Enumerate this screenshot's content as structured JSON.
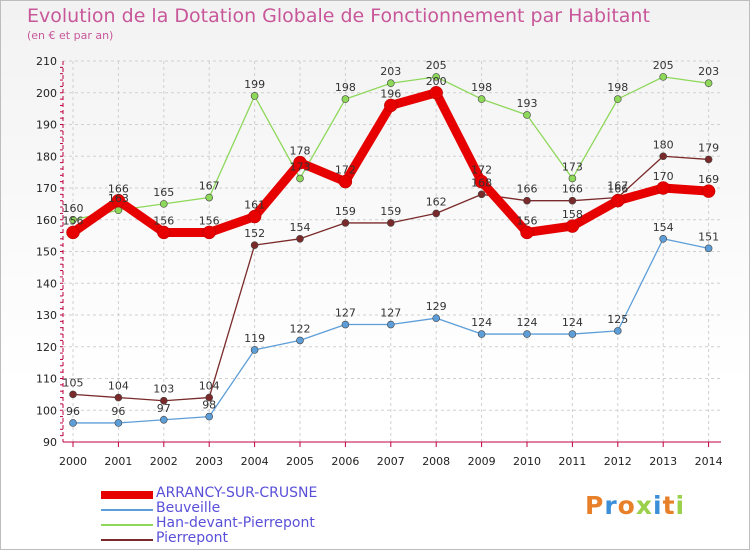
{
  "header": {
    "title": "Evolution de la Dotation Globale de Fonctionnement par Habitant",
    "subtitle": "(en € et par an)"
  },
  "logo": {
    "text": "Proxiti",
    "letters": [
      "P",
      "r",
      "o",
      "x",
      "i",
      "t",
      "i"
    ]
  },
  "colors": {
    "ARRANCY-SUR-CRUSNE": "#e60000",
    "Beuveille": "#5d9ed8",
    "Han-devant-Pierrepont": "#8ed85a",
    "Pierrepont": "#7a2a2a",
    "logo": [
      "#e8802a",
      "#3a8fd8",
      "#e8802a",
      "#9bd04a",
      "#3a8fd8",
      "#e8802a",
      "#9bd04a"
    ]
  },
  "chart_data": {
    "type": "line",
    "title": "Evolution de la Dotation Globale de Fonctionnement par Habitant",
    "subtitle": "(en € et par an)",
    "xlabel": "",
    "ylabel": "",
    "x": [
      "2000",
      "2001",
      "2002",
      "2003",
      "2004",
      "2005",
      "2006",
      "2007",
      "2008",
      "2009",
      "2010",
      "2011",
      "2012",
      "2013",
      "2014"
    ],
    "ylim": [
      90,
      210
    ],
    "yticks": [
      90,
      100,
      110,
      120,
      130,
      140,
      150,
      160,
      170,
      180,
      190,
      200,
      210
    ],
    "grid": true,
    "legend_position": "bottom-left",
    "series": [
      {
        "name": "ARRANCY-SUR-CRUSNE",
        "values": [
          156,
          166,
          156,
          156,
          161,
          178,
          172,
          196,
          200,
          172,
          156,
          158,
          166,
          170,
          169
        ]
      },
      {
        "name": "Beuveille",
        "values": [
          96,
          96,
          97,
          98,
          119,
          122,
          127,
          127,
          129,
          124,
          124,
          124,
          125,
          154,
          151
        ]
      },
      {
        "name": "Han-devant-Pierrepont",
        "values": [
          160,
          163,
          165,
          167,
          199,
          173,
          198,
          203,
          205,
          198,
          193,
          173,
          198,
          205,
          203
        ]
      },
      {
        "name": "Pierrepont",
        "values": [
          105,
          104,
          103,
          104,
          152,
          154,
          159,
          159,
          162,
          168,
          166,
          166,
          167,
          180,
          179
        ]
      }
    ]
  }
}
